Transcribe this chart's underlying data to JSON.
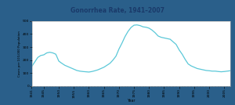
{
  "title": "Gonorrhea Rate, 1941–2007",
  "xlabel": "Year",
  "ylabel": "Cases per 100,000 Population",
  "line_color": "#5bc8d8",
  "background_color": "#ffffff",
  "border_color": "#2a5f8a",
  "title_color": "#1a3a6a",
  "ylim": [
    0,
    500
  ],
  "yticks": [
    0,
    100,
    200,
    300,
    400,
    500
  ],
  "xlim": [
    1941,
    2007
  ],
  "xticks": [
    1941,
    1945,
    1950,
    1955,
    1960,
    1965,
    1970,
    1975,
    1980,
    1985,
    1990,
    1995,
    2000,
    2005
  ],
  "data": {
    "years": [
      1941,
      1942,
      1943,
      1944,
      1945,
      1946,
      1947,
      1948,
      1949,
      1950,
      1951,
      1952,
      1953,
      1954,
      1955,
      1956,
      1957,
      1958,
      1959,
      1960,
      1961,
      1962,
      1963,
      1964,
      1965,
      1966,
      1967,
      1968,
      1969,
      1970,
      1971,
      1972,
      1973,
      1974,
      1975,
      1976,
      1977,
      1978,
      1979,
      1980,
      1981,
      1982,
      1983,
      1984,
      1985,
      1986,
      1987,
      1988,
      1989,
      1990,
      1991,
      1992,
      1993,
      1994,
      1995,
      1996,
      1997,
      1998,
      1999,
      2000,
      2001,
      2002,
      2003,
      2004,
      2005,
      2006,
      2007
    ],
    "rates": [
      150,
      185,
      220,
      235,
      240,
      255,
      260,
      255,
      245,
      192,
      175,
      160,
      150,
      140,
      130,
      120,
      115,
      112,
      110,
      108,
      112,
      118,
      125,
      135,
      145,
      160,
      175,
      200,
      230,
      285,
      330,
      380,
      420,
      450,
      468,
      470,
      465,
      455,
      452,
      445,
      430,
      410,
      385,
      375,
      370,
      365,
      360,
      340,
      320,
      278,
      245,
      205,
      170,
      155,
      145,
      135,
      130,
      125,
      120,
      118,
      115,
      115,
      112,
      110,
      112,
      115,
      118
    ]
  }
}
